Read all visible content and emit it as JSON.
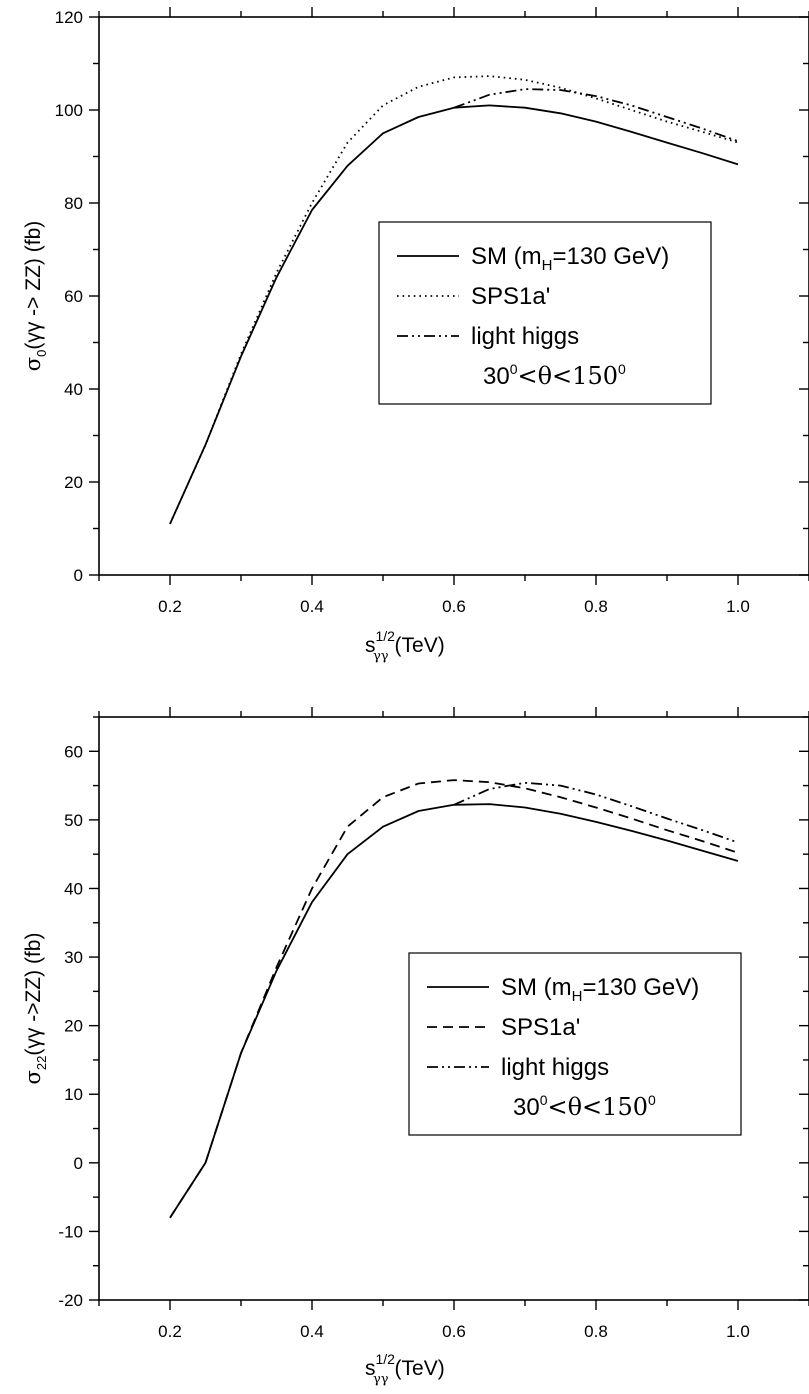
{
  "chart_data": [
    {
      "type": "line",
      "ylabel": {
        "sigma": "σ",
        "sub": "0",
        "text": "(γγ -> ZZ) (fb)"
      },
      "xlabel": {
        "s": "s",
        "sup": "1/2",
        "sub": "γγ",
        "text": "(TeV)"
      },
      "xlim": [
        0.1,
        1.1
      ],
      "ylim": [
        0,
        120
      ],
      "x_ticks": [
        "0.2",
        "0.4",
        "0.6",
        "0.8",
        "1.0"
      ],
      "y_ticks": [
        "0",
        "20",
        "40",
        "60",
        "80",
        "100",
        "120"
      ],
      "legend": {
        "placement": "center-right",
        "entries": [
          {
            "label": "SM (m",
            "sub": "H",
            "label_end": "=130 GeV)",
            "style": "solid"
          },
          {
            "label": "SPS1a'",
            "style": "dotted"
          },
          {
            "label": "light higgs",
            "style": "dash-dot-dot"
          }
        ],
        "cut": {
          "a": "30",
          "a_sup": "0",
          "mid": "<θ<150",
          "b_sup": "0"
        }
      },
      "series": [
        {
          "style": "solid",
          "x": [
            0.2,
            0.25,
            0.3,
            0.35,
            0.4,
            0.45,
            0.5,
            0.55,
            0.6,
            0.65,
            0.7,
            0.75,
            0.8,
            0.85,
            0.9,
            0.95,
            1.0
          ],
          "y": [
            11,
            28,
            47,
            64,
            78.5,
            88,
            95,
            98.5,
            100.5,
            101,
            100.5,
            99.3,
            97.5,
            95.3,
            93,
            90.7,
            88.3
          ]
        },
        {
          "style": "dotted",
          "x": [
            0.2,
            0.25,
            0.3,
            0.35,
            0.4,
            0.45,
            0.5,
            0.55,
            0.6,
            0.65,
            0.7,
            0.75,
            0.8,
            0.85,
            0.9,
            0.95,
            1.0
          ],
          "y": [
            11,
            28,
            47.5,
            65,
            80,
            93,
            101,
            105,
            107,
            107.3,
            106.5,
            104.8,
            102.5,
            100,
            97.5,
            95.3,
            93
          ]
        },
        {
          "style": "dash-dot-dot",
          "x": [
            0.6,
            0.65,
            0.7,
            0.75,
            0.8,
            0.85,
            0.9,
            0.95,
            1.0
          ],
          "y": [
            100.5,
            103.3,
            104.5,
            104.3,
            103,
            101,
            98.5,
            96,
            93.3
          ]
        }
      ]
    },
    {
      "type": "line",
      "ylabel": {
        "sigma": "σ",
        "sub": "22",
        "text": "(γγ ->ZZ) (fb)"
      },
      "xlabel": {
        "s": "s",
        "sup": "1/2",
        "sub": "γγ",
        "text": "(TeV)"
      },
      "xlim": [
        0.1,
        1.1
      ],
      "ylim": [
        -20,
        65
      ],
      "x_ticks": [
        "0.2",
        "0.4",
        "0.6",
        "0.8",
        "1.0"
      ],
      "y_ticks": [
        "-20",
        "-10",
        "0",
        "10",
        "20",
        "30",
        "40",
        "50",
        "60"
      ],
      "legend": {
        "placement": "center-right",
        "entries": [
          {
            "label": "SM (m",
            "sub": "H",
            "label_end": "=130 GeV)",
            "style": "solid"
          },
          {
            "label": "SPS1a'",
            "style": "dashed"
          },
          {
            "label": "light higgs",
            "style": "dash-dot-dot"
          }
        ],
        "cut": {
          "a": "30",
          "a_sup": "0",
          "mid": "<θ<150",
          "b_sup": "0"
        }
      },
      "series": [
        {
          "style": "solid",
          "x": [
            0.2,
            0.25,
            0.3,
            0.35,
            0.4,
            0.45,
            0.5,
            0.55,
            0.6,
            0.65,
            0.7,
            0.75,
            0.8,
            0.85,
            0.9,
            0.95,
            1.0
          ],
          "y": [
            -8,
            0,
            16,
            28,
            38,
            45,
            49,
            51.3,
            52.2,
            52.3,
            51.8,
            50.9,
            49.7,
            48.4,
            47,
            45.5,
            44
          ]
        },
        {
          "style": "dashed",
          "x": [
            0.2,
            0.25,
            0.3,
            0.35,
            0.4,
            0.45,
            0.5,
            0.55,
            0.6,
            0.65,
            0.7,
            0.75,
            0.8,
            0.85,
            0.9,
            0.95,
            1.0
          ],
          "y": [
            -8,
            0,
            16,
            28.5,
            40,
            49,
            53.3,
            55.3,
            55.8,
            55.5,
            54.6,
            53.3,
            51.8,
            50.2,
            48.5,
            46.9,
            45.2
          ]
        },
        {
          "style": "dash-dot-dot",
          "x": [
            0.6,
            0.65,
            0.7,
            0.75,
            0.8,
            0.85,
            0.9,
            0.95,
            1.0
          ],
          "y": [
            52.2,
            54.5,
            55.4,
            55,
            53.7,
            52,
            50.2,
            48.5,
            46.7
          ]
        }
      ]
    }
  ]
}
